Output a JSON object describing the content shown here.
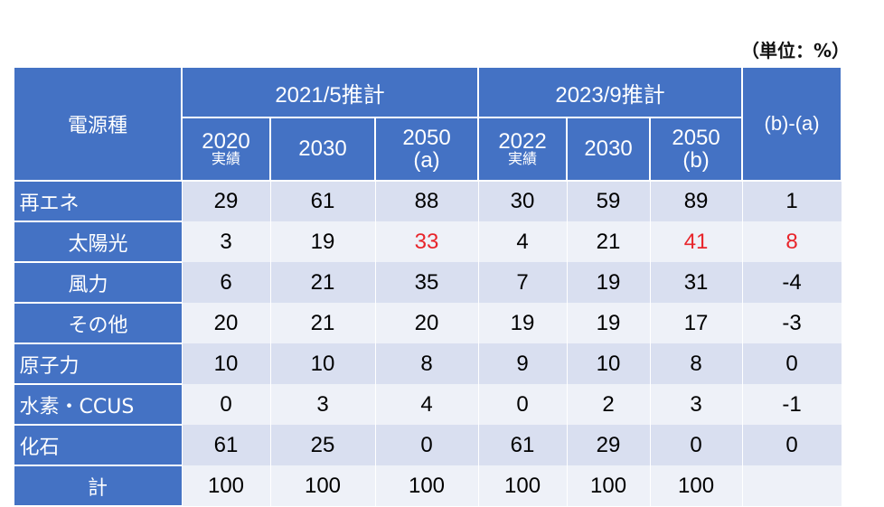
{
  "unit_label": "（単位：%）",
  "header": {
    "category": "電源種",
    "group_a": "2021/5推計",
    "group_b": "2023/9推計",
    "diff": "(b)-(a)",
    "cols": [
      {
        "year": "2020",
        "note": "実績"
      },
      {
        "year": "2030",
        "note": ""
      },
      {
        "year": "2050",
        "note": "(a)"
      },
      {
        "year": "2022",
        "note": "実績"
      },
      {
        "year": "2030",
        "note": ""
      },
      {
        "year": "2050",
        "note": "(b)"
      }
    ]
  },
  "rows": [
    {
      "label": "再エネ",
      "values": [
        "29",
        "61",
        "88",
        "30",
        "59",
        "89",
        "1"
      ]
    },
    {
      "label": "太陽光",
      "values": [
        "3",
        "19",
        "33",
        "4",
        "21",
        "41",
        "8"
      ]
    },
    {
      "label": "風力",
      "values": [
        "6",
        "21",
        "35",
        "7",
        "19",
        "31",
        "-4"
      ]
    },
    {
      "label": "その他",
      "values": [
        "20",
        "21",
        "20",
        "19",
        "19",
        "17",
        "-3"
      ]
    },
    {
      "label": "原子力",
      "values": [
        "10",
        "10",
        "8",
        "9",
        "10",
        "8",
        "0"
      ]
    },
    {
      "label": "水素・CCUS",
      "values": [
        "0",
        "3",
        "4",
        "0",
        "2",
        "3",
        "-1"
      ]
    },
    {
      "label": "化石",
      "values": [
        "61",
        "25",
        "0",
        "61",
        "29",
        "0",
        "0"
      ]
    },
    {
      "label": "計",
      "values": [
        "100",
        "100",
        "100",
        "100",
        "100",
        "100",
        ""
      ]
    }
  ],
  "highlight_color": "#e8252b"
}
